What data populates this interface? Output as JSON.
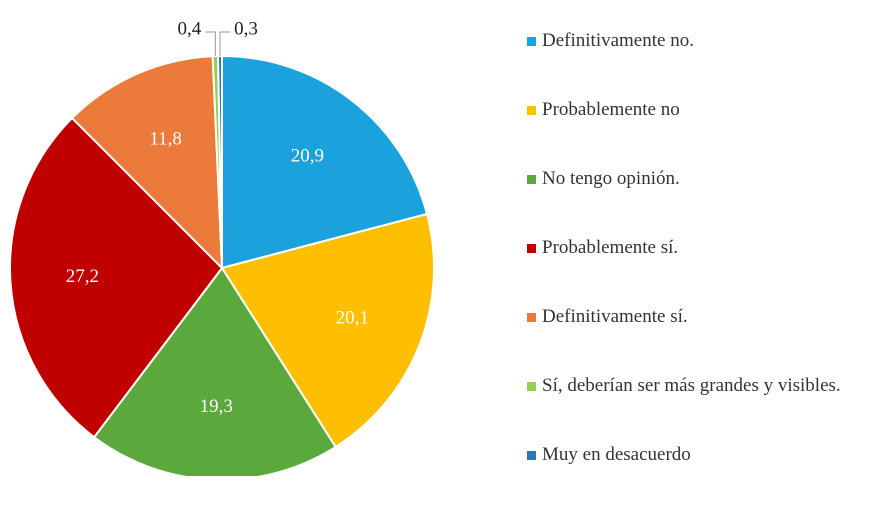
{
  "chart_data": {
    "type": "pie",
    "categories": [
      "Definitivamente no.",
      "Probablemente no",
      "No tengo opinión.",
      "Probablemente sí.",
      "Definitivamente sí.",
      "Sí, deberían ser más grandes y visibles.",
      "Muy en desacuerdo"
    ],
    "values": [
      20.9,
      20.1,
      19.3,
      27.2,
      11.8,
      0.4,
      0.3
    ],
    "value_labels": [
      "20,9",
      "20,1",
      "19,3",
      "27,2",
      "11,8",
      "0,4",
      "0,3"
    ],
    "colors": [
      "#1ba1db",
      "#fdbf00",
      "#5ba83c",
      "#c00000",
      "#ec7a3a",
      "#92d050",
      "#2e75b6"
    ],
    "legend": "right"
  }
}
